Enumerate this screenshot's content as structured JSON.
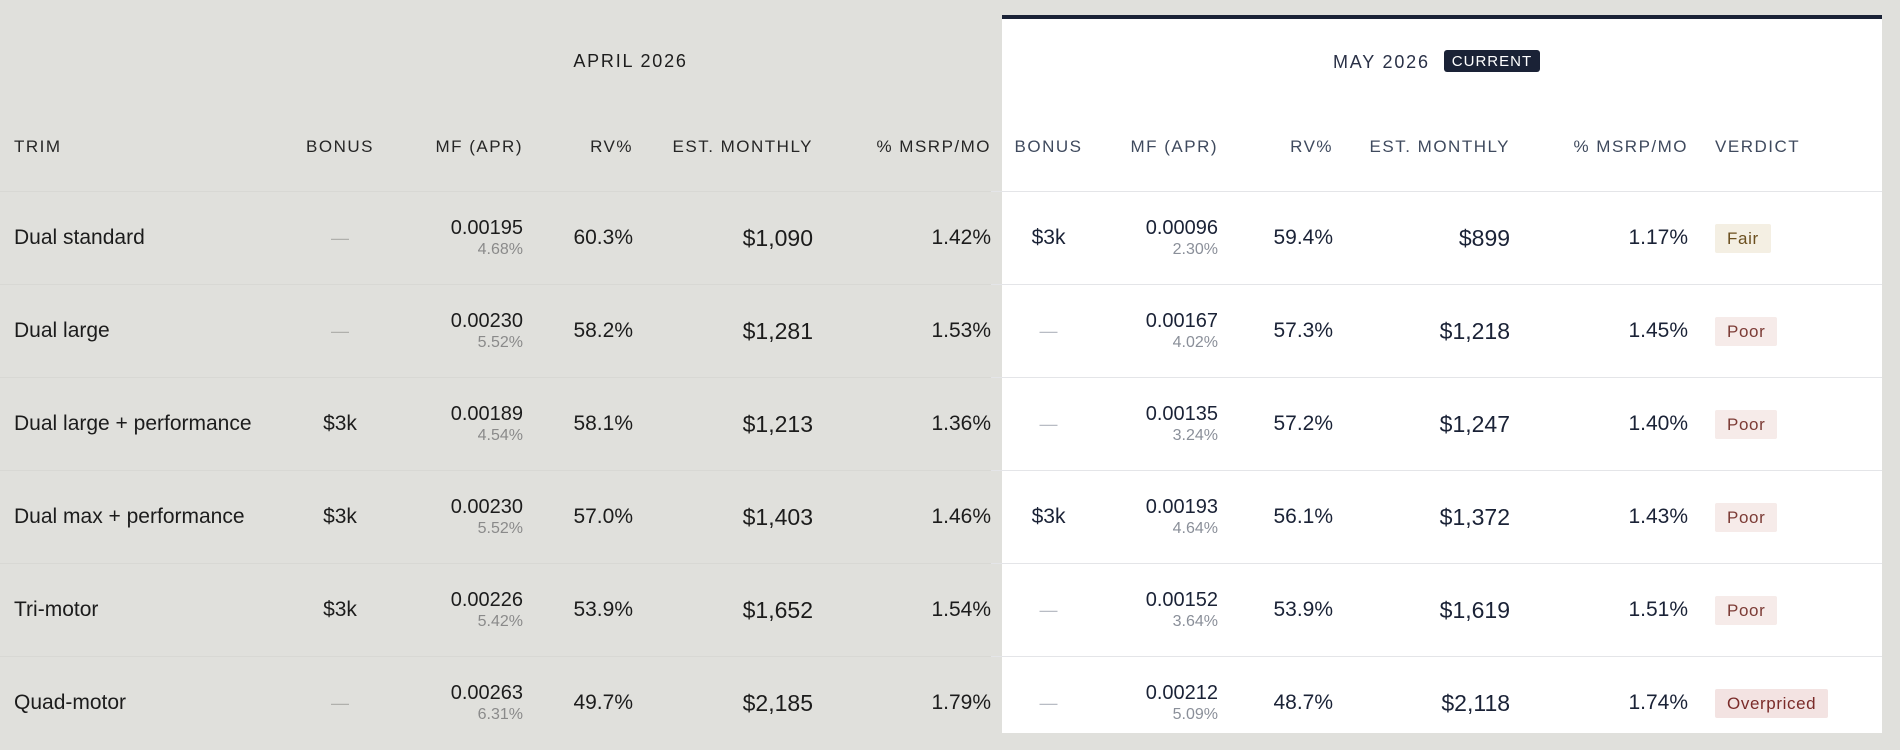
{
  "periods": {
    "april": {
      "label": "APRIL 2026"
    },
    "may": {
      "label": "MAY 2026",
      "badge": "CURRENT"
    }
  },
  "columns": {
    "trim": "TRIM",
    "bonus": "BONUS",
    "mf": "MF (APR)",
    "rv": "RV%",
    "monthly": "EST. MONTHLY",
    "pct": "% MSRP/MO",
    "verdict": "VERDICT"
  },
  "dash_glyph": "—",
  "verdict_colors": {
    "fair": "#f4efe3",
    "poor": "#f6ebe9",
    "overpriced": "#f3e3e2"
  },
  "rows": [
    {
      "trim": "Dual standard",
      "april": {
        "bonus": "—",
        "mf": "0.00195",
        "apr": "4.68%",
        "rv": "60.3%",
        "monthly": "$1,090",
        "pct": "1.42%"
      },
      "may": {
        "bonus": "$3k",
        "mf": "0.00096",
        "apr": "2.30%",
        "rv": "59.4%",
        "monthly": "$899",
        "pct": "1.17%",
        "verdict": "Fair"
      }
    },
    {
      "trim": "Dual large",
      "april": {
        "bonus": "—",
        "mf": "0.00230",
        "apr": "5.52%",
        "rv": "58.2%",
        "monthly": "$1,281",
        "pct": "1.53%"
      },
      "may": {
        "bonus": "—",
        "mf": "0.00167",
        "apr": "4.02%",
        "rv": "57.3%",
        "monthly": "$1,218",
        "pct": "1.45%",
        "verdict": "Poor"
      }
    },
    {
      "trim": "Dual large + performance",
      "april": {
        "bonus": "$3k",
        "mf": "0.00189",
        "apr": "4.54%",
        "rv": "58.1%",
        "monthly": "$1,213",
        "pct": "1.36%"
      },
      "may": {
        "bonus": "—",
        "mf": "0.00135",
        "apr": "3.24%",
        "rv": "57.2%",
        "monthly": "$1,247",
        "pct": "1.40%",
        "verdict": "Poor"
      }
    },
    {
      "trim": "Dual max + performance",
      "april": {
        "bonus": "$3k",
        "mf": "0.00230",
        "apr": "5.52%",
        "rv": "57.0%",
        "monthly": "$1,403",
        "pct": "1.46%"
      },
      "may": {
        "bonus": "$3k",
        "mf": "0.00193",
        "apr": "4.64%",
        "rv": "56.1%",
        "monthly": "$1,372",
        "pct": "1.43%",
        "verdict": "Poor"
      }
    },
    {
      "trim": "Tri-motor",
      "april": {
        "bonus": "$3k",
        "mf": "0.00226",
        "apr": "5.42%",
        "rv": "53.9%",
        "monthly": "$1,652",
        "pct": "1.54%"
      },
      "may": {
        "bonus": "—",
        "mf": "0.00152",
        "apr": "3.64%",
        "rv": "53.9%",
        "monthly": "$1,619",
        "pct": "1.51%",
        "verdict": "Poor"
      }
    },
    {
      "trim": "Quad-motor",
      "april": {
        "bonus": "—",
        "mf": "0.00263",
        "apr": "6.31%",
        "rv": "49.7%",
        "monthly": "$2,185",
        "pct": "1.79%"
      },
      "may": {
        "bonus": "—",
        "mf": "0.00212",
        "apr": "5.09%",
        "rv": "48.7%",
        "monthly": "$2,118",
        "pct": "1.74%",
        "verdict": "Overpriced"
      }
    }
  ]
}
